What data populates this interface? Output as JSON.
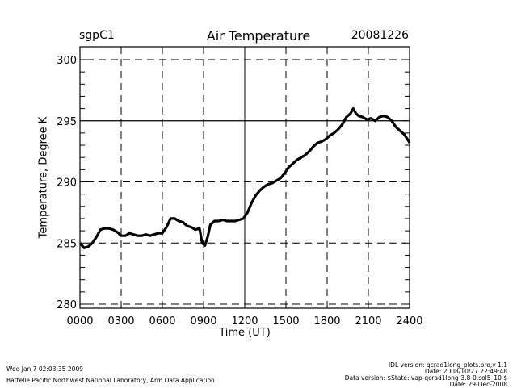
{
  "header": {
    "site": "sgpC1",
    "title": "Air Temperature",
    "date": "20081226"
  },
  "footer": {
    "run_time": "Wed Jan  7 02:03:35 2009",
    "organization": "Battelle Pacific Northwest National Laboratory, Arm Data Application",
    "idl_version": "IDL version: qcrad1long_plots.pro,v 1.1",
    "idl_date": "Date: 2008/10/27 22:49:48",
    "data_version": "Data version: $State: vap-qcrad1long-3.8-0.sol5_10 $",
    "data_date": "Date: 29-Dec-2008"
  },
  "chart_data": {
    "type": "line",
    "title": "Air Temperature",
    "xlabel": "Time (UT)",
    "ylabel": "Temperature, Degree K",
    "xlim": [
      0,
      24
    ],
    "ylim": [
      279.5,
      301
    ],
    "x_ticks": [
      0,
      3,
      6,
      9,
      12,
      15,
      18,
      21,
      24
    ],
    "x_tick_labels": [
      "0000",
      "0300",
      "0600",
      "0900",
      "1200",
      "1500",
      "1800",
      "2100",
      "2400"
    ],
    "y_ticks": [
      280,
      285,
      290,
      295,
      300
    ],
    "y_tick_labels": [
      "280",
      "285",
      "290",
      "295",
      "300"
    ],
    "y_minor_step": 1,
    "grid": true,
    "solid_gridlines": {
      "x": [
        12
      ],
      "y": [
        295
      ]
    },
    "series": [
      {
        "name": "Air Temperature",
        "x": [
          0,
          0.3,
          0.6,
          0.9,
          1.2,
          1.5,
          1.8,
          2.1,
          2.4,
          2.7,
          3.0,
          3.3,
          3.6,
          3.9,
          4.2,
          4.5,
          4.8,
          5.1,
          5.4,
          5.7,
          6.0,
          6.3,
          6.6,
          6.9,
          7.2,
          7.5,
          7.8,
          8.1,
          8.4,
          8.7,
          8.9,
          9.1,
          9.3,
          9.5,
          9.8,
          10.1,
          10.4,
          10.7,
          11.0,
          11.3,
          11.6,
          11.9,
          12.2,
          12.5,
          12.8,
          13.1,
          13.4,
          13.7,
          14.0,
          14.3,
          14.6,
          14.9,
          15.2,
          15.5,
          15.8,
          16.1,
          16.4,
          16.7,
          17.0,
          17.3,
          17.6,
          17.9,
          18.2,
          18.5,
          18.8,
          19.1,
          19.4,
          19.7,
          19.9,
          20.1,
          20.3,
          20.6,
          20.9,
          21.2,
          21.5,
          21.8,
          22.1,
          22.4,
          22.7,
          23.0,
          23.3,
          23.6,
          23.9,
          24.0
        ],
        "y": [
          285.0,
          284.6,
          284.7,
          285.0,
          285.5,
          286.1,
          286.2,
          286.2,
          286.1,
          285.9,
          285.6,
          285.6,
          285.8,
          285.7,
          285.6,
          285.6,
          285.7,
          285.6,
          285.7,
          285.8,
          285.8,
          286.3,
          287.0,
          287.0,
          286.8,
          286.7,
          286.4,
          286.3,
          286.1,
          286.2,
          285.0,
          284.8,
          285.5,
          286.5,
          286.8,
          286.8,
          286.9,
          286.8,
          286.8,
          286.8,
          286.9,
          287.0,
          287.5,
          288.3,
          288.9,
          289.3,
          289.6,
          289.8,
          289.9,
          290.1,
          290.3,
          290.7,
          291.2,
          291.5,
          291.8,
          292.0,
          292.2,
          292.5,
          292.9,
          293.2,
          293.3,
          293.5,
          293.8,
          294.0,
          294.3,
          294.7,
          295.3,
          295.6,
          296.0,
          295.6,
          295.4,
          295.3,
          295.1,
          295.2,
          295.0,
          295.3,
          295.4,
          295.3,
          295.0,
          294.5,
          294.2,
          293.9,
          293.4,
          293.2
        ]
      }
    ]
  }
}
